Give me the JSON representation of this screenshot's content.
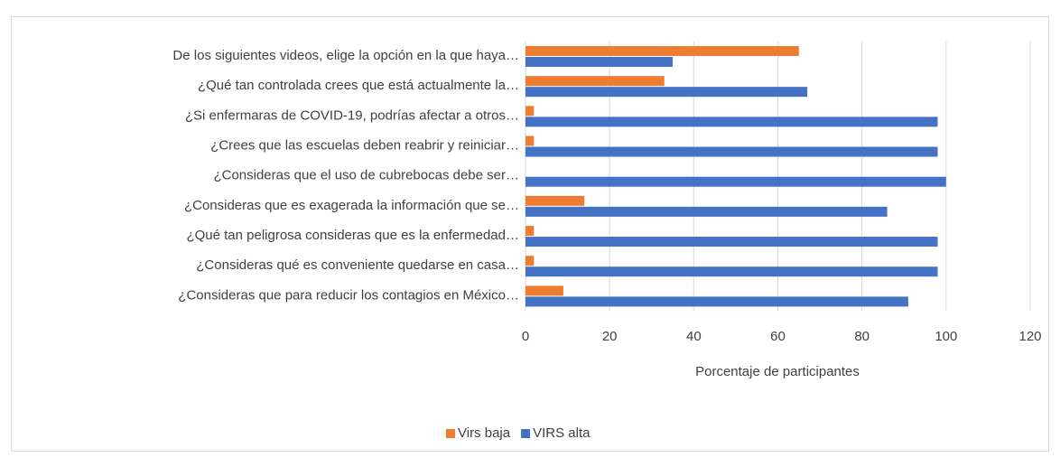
{
  "chart_data": {
    "type": "bar",
    "orientation": "horizontal",
    "categories": [
      "De los siguientes videos, elige la opción en la que haya…",
      "¿Qué tan controlada crees que está actualmente la…",
      "¿Si enfermaras de COVID-19, podrías afectar a otros…",
      "¿Crees que las escuelas deben reabrir y reiniciar…",
      "¿Consideras que el uso de cubrebocas debe ser…",
      "¿Consideras que es exagerada la información que se…",
      "¿Qué tan peligrosa consideras que es la enfermedad…",
      "¿Consideras qué es conveniente quedarse en casa…",
      "¿Consideras que para reducir los contagios en México…"
    ],
    "series": [
      {
        "name": "Virs baja",
        "color": "#ed7d31",
        "values": [
          65,
          33,
          2,
          2,
          0,
          14,
          2,
          2,
          9
        ]
      },
      {
        "name": "VIRS alta",
        "color": "#4472c4",
        "values": [
          35,
          67,
          98,
          98,
          100,
          86,
          98,
          98,
          91
        ]
      }
    ],
    "xlabel": "Porcentaje de participantes",
    "xlim": [
      0,
      120
    ],
    "xticks": [
      0,
      20,
      40,
      60,
      80,
      100,
      120
    ],
    "grid": true,
    "legend": "bottom"
  }
}
